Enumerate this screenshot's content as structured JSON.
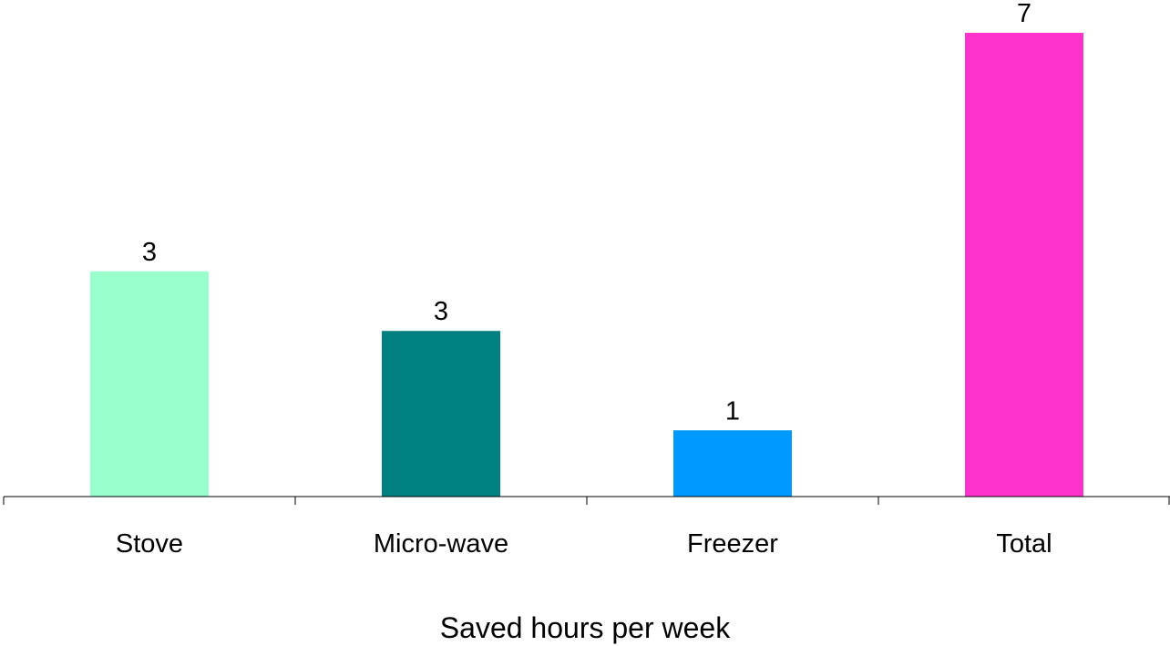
{
  "chart_data": {
    "type": "bar",
    "categories": [
      "Stove",
      "Micro-wave",
      "Freezer",
      "Total"
    ],
    "values": [
      3.4,
      2.5,
      1.0,
      7.0
    ],
    "data_labels": [
      "3",
      "3",
      "1",
      "7"
    ],
    "colors": [
      "#99ffcc",
      "#008080",
      "#0099ff",
      "#ff33cc"
    ],
    "title": "",
    "xlabel": "Saved hours per week",
    "ylabel": "",
    "ylim": [
      0,
      7.0
    ],
    "grid": false,
    "legend": "none"
  }
}
